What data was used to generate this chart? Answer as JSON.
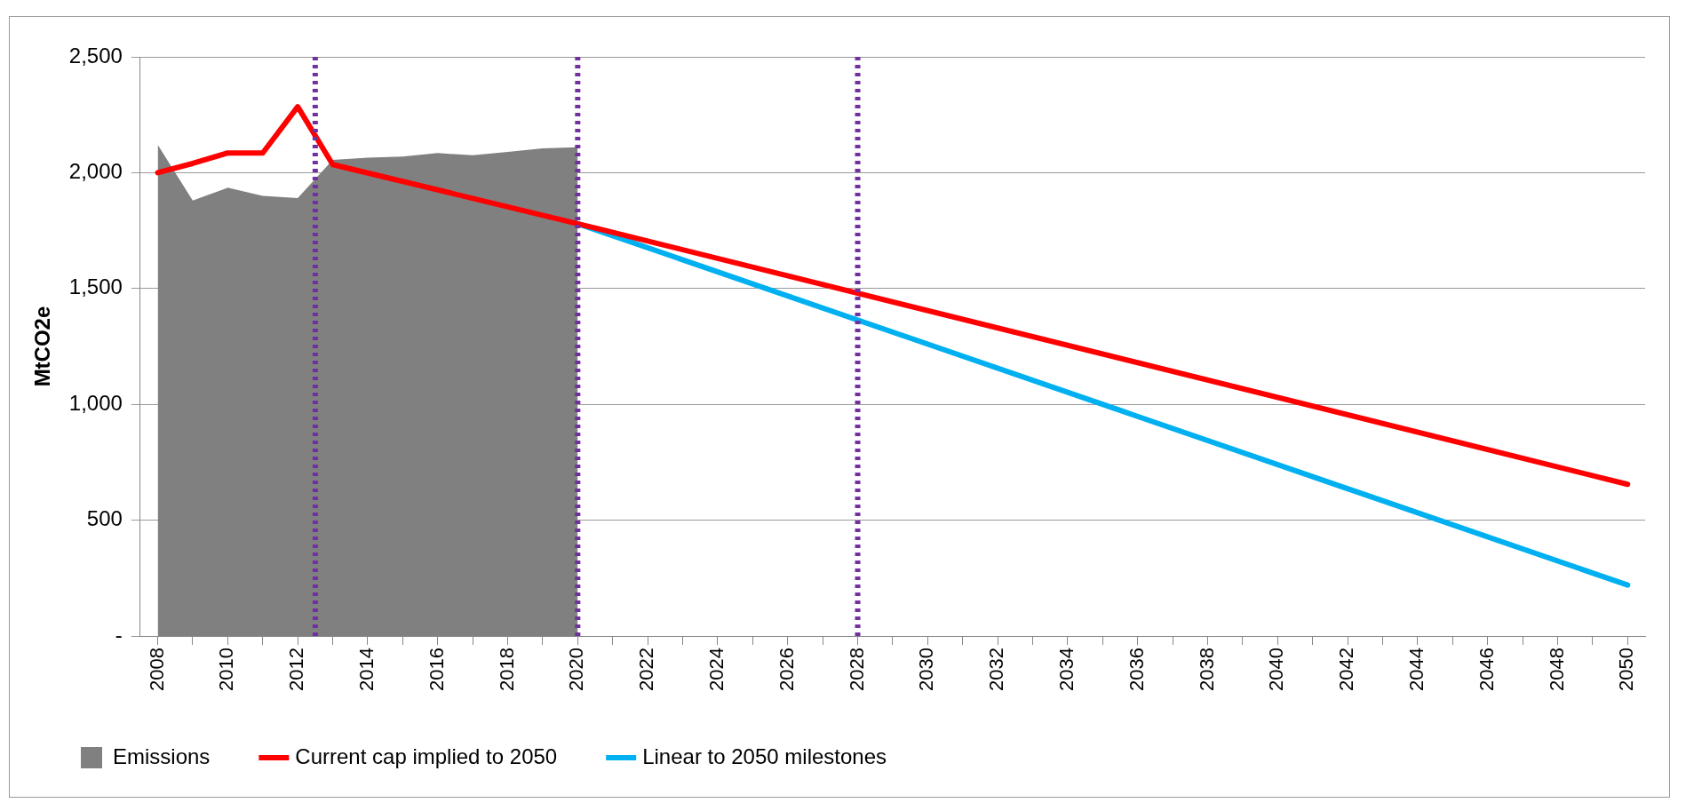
{
  "chart_data": {
    "type": "line",
    "ylabel": "MtCO2e",
    "xlim": [
      2007.5,
      2050.5
    ],
    "xticks": [
      2008,
      {
        "value": 2009,
        "label": null
      },
      2010,
      {
        "value": 2011,
        "label": null
      },
      2012,
      {
        "value": 2013,
        "label": null
      },
      2014,
      {
        "value": 2015,
        "label": null
      },
      2016,
      {
        "value": 2017,
        "label": null
      },
      2018,
      {
        "value": 2019,
        "label": null
      },
      2020,
      {
        "value": 2021,
        "label": null
      },
      2022,
      {
        "value": 2023,
        "label": null
      },
      2024,
      {
        "value": 2025,
        "label": null
      },
      2026,
      {
        "value": 2027,
        "label": null
      },
      2028,
      {
        "value": 2029,
        "label": null
      },
      2030,
      {
        "value": 2031,
        "label": null
      },
      2032,
      {
        "value": 2033,
        "label": null
      },
      2034,
      {
        "value": 2035,
        "label": null
      },
      2036,
      {
        "value": 2037,
        "label": null
      },
      2038,
      {
        "value": 2039,
        "label": null
      },
      2040,
      {
        "value": 2041,
        "label": null
      },
      2042,
      {
        "value": 2043,
        "label": null
      },
      2044,
      {
        "value": 2045,
        "label": null
      },
      2046,
      {
        "value": 2047,
        "label": null
      },
      2048,
      {
        "value": 2049,
        "label": null
      },
      2050
    ],
    "ylim": [
      0,
      2500
    ],
    "yticks": [
      {
        "value": 0,
        "label": "-"
      },
      500,
      {
        "value": 1000,
        "label": "1,000"
      },
      {
        "value": 1500,
        "label": "1,500"
      },
      {
        "value": 2000,
        "label": "2,000"
      },
      {
        "value": 2500,
        "label": "2,500"
      }
    ],
    "grid": "y",
    "legend": "bottom",
    "marker": "none",
    "series": [
      {
        "name": "Emissions",
        "type": "area",
        "color": "#808080",
        "x": [
          2008,
          2009,
          2010,
          2011,
          2012,
          2013,
          2014,
          2015,
          2016,
          2017,
          2018,
          2019,
          2020
        ],
        "values": [
          2120,
          1880,
          1935,
          1900,
          1890,
          2055,
          2065,
          2070,
          2085,
          2075,
          2090,
          2105,
          2110
        ]
      },
      {
        "name": "Current cap implied to 2050",
        "color": "#ff0000",
        "x": [
          2008,
          2009,
          2010,
          2011,
          2012,
          2013,
          2020,
          2050
        ],
        "values": [
          2000,
          2040,
          2085,
          2085,
          2285,
          2035,
          1780,
          655
        ]
      },
      {
        "name": "Linear to 2050 milestones",
        "color": "#00b0f0",
        "x": [
          2020,
          2050
        ],
        "values": [
          1780,
          220
        ]
      }
    ],
    "ref_lines": [
      {
        "axis": "x",
        "value": 2012.5,
        "color": "#7030a0",
        "line_style": "dotted"
      },
      {
        "axis": "x",
        "value": 2020,
        "color": "#7030a0",
        "line_style": "dotted"
      },
      {
        "axis": "x",
        "value": 2028,
        "color": "#7030a0",
        "line_style": "dotted"
      }
    ]
  }
}
